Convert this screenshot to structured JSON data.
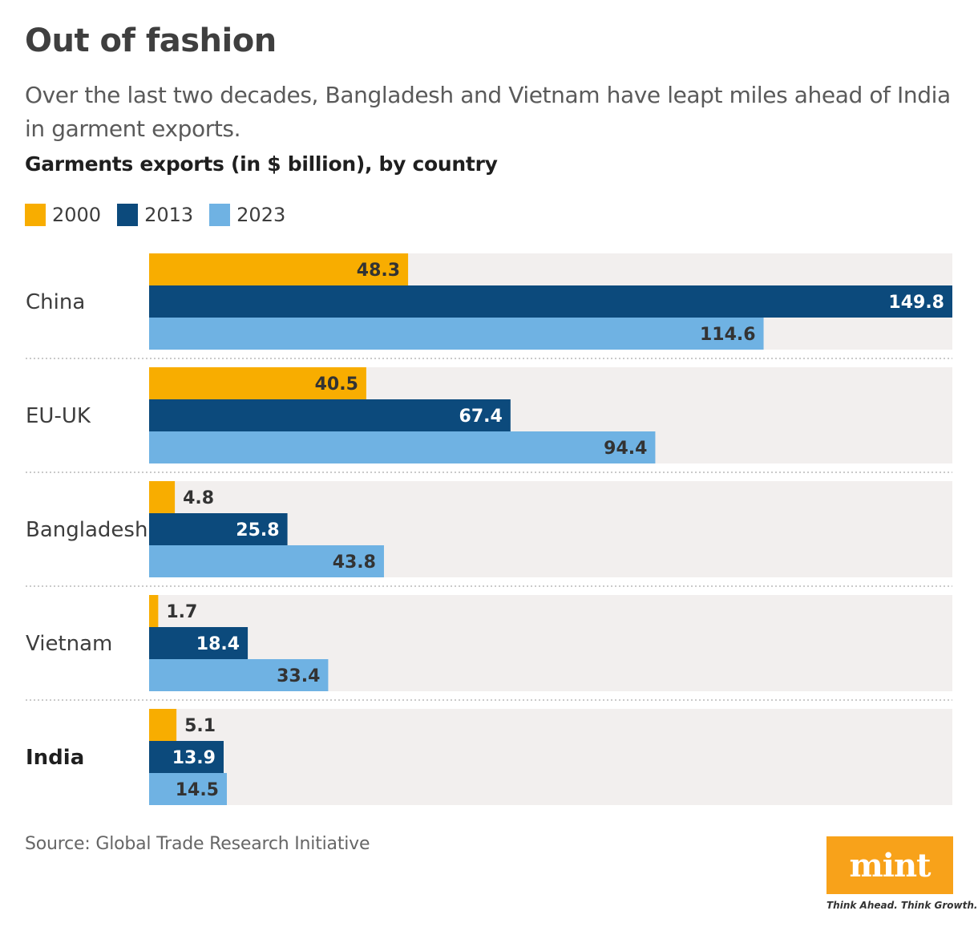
{
  "title": "Out of fashion",
  "subtitle": "Over the last two decades, Bangladesh and Vietnam have leapt miles ahead of India in garment exports.",
  "source": "Source: Global Trade Research Initiative",
  "logo": {
    "word": "mint",
    "tagline": "Think Ahead. Think Growth."
  },
  "colors": {
    "s2000": "#f8ad00",
    "s2013": "#0c4a7c",
    "s2023": "#6fb2e3",
    "track": "#f2efee",
    "logo_bg": "#f8a21a"
  },
  "chart_data": {
    "type": "bar",
    "orientation": "horizontal",
    "title": "Garments exports (in $ billion), by country",
    "categories": [
      "China",
      "EU-UK",
      "Bangladesh",
      "Vietnam",
      "India"
    ],
    "highlight_category": "India",
    "series": [
      {
        "name": "2000",
        "values": [
          48.3,
          40.5,
          4.8,
          1.7,
          5.1
        ]
      },
      {
        "name": "2013",
        "values": [
          149.8,
          67.4,
          25.8,
          18.4,
          13.9
        ]
      },
      {
        "name": "2023",
        "values": [
          114.6,
          94.4,
          43.8,
          33.4,
          14.5
        ]
      }
    ],
    "xlim": [
      0,
      149.8
    ],
    "legend": "top-left",
    "data_labels": true,
    "grid": false
  }
}
